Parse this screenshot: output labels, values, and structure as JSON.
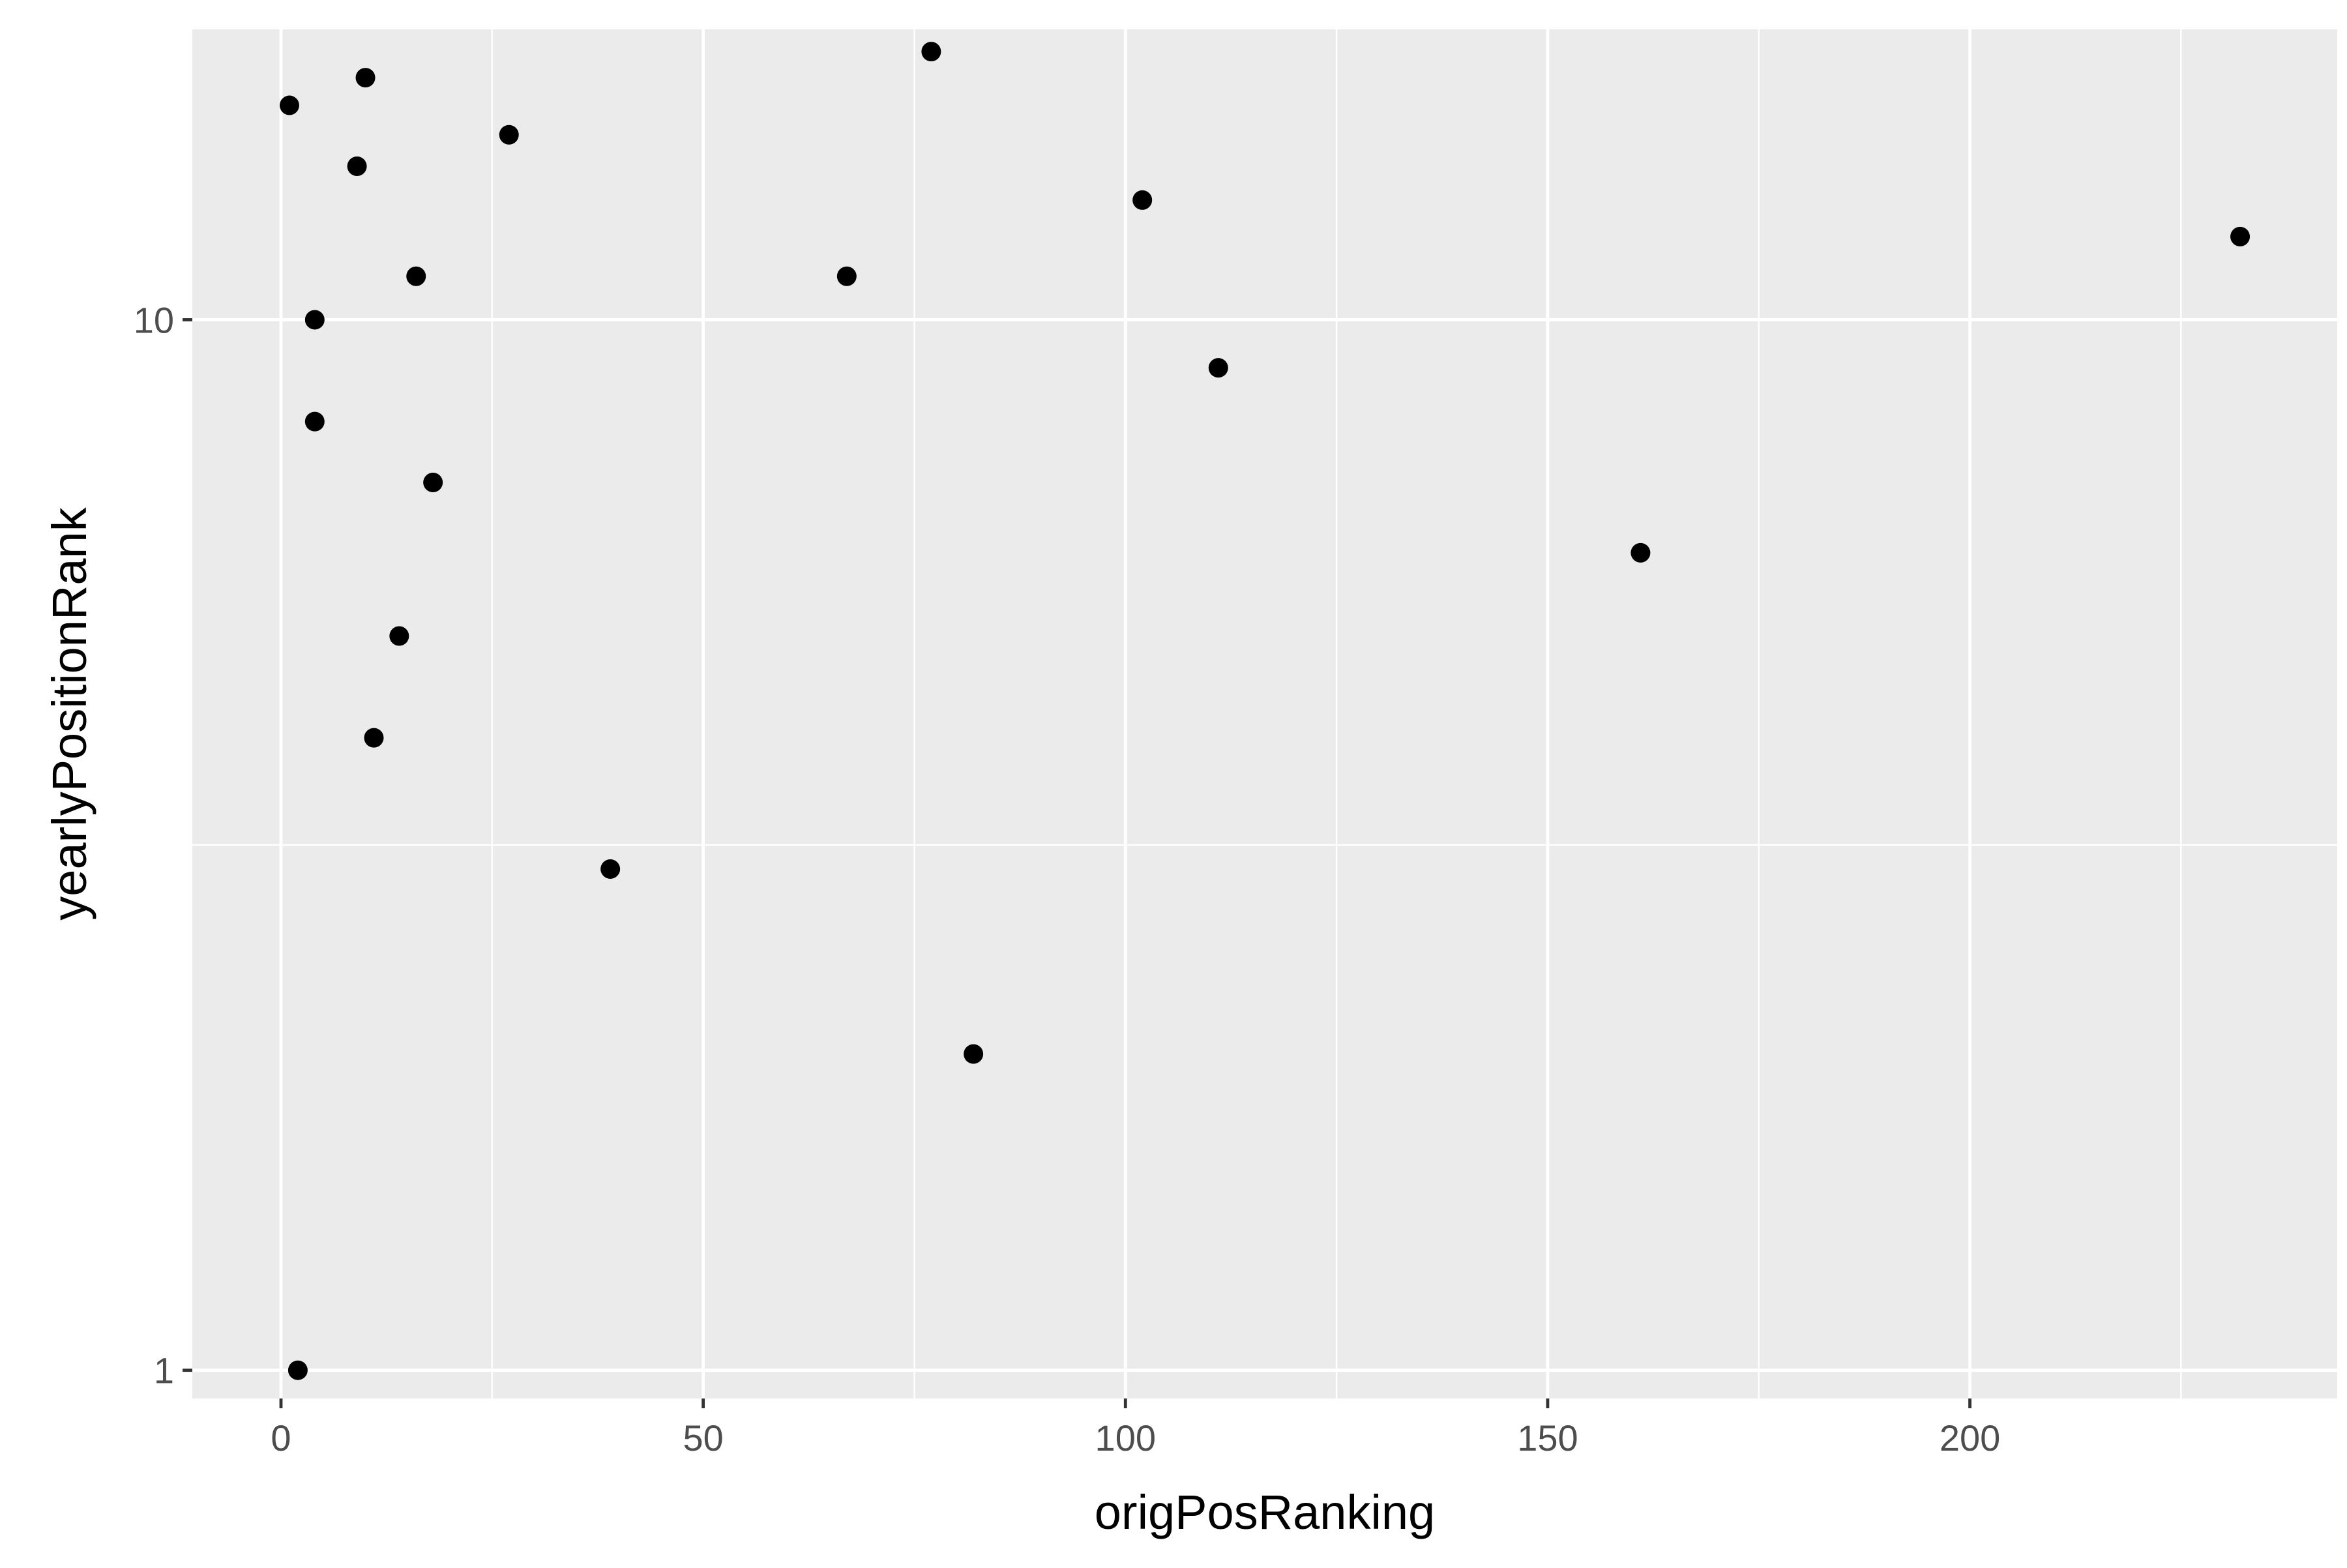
{
  "chart_data": {
    "type": "scatter",
    "title": "",
    "xlabel": "origPosRanking",
    "ylabel": "yearlyPositionRank",
    "x_scale": "linear",
    "y_scale": "log10",
    "xlim": [
      -10.5,
      243.5
    ],
    "ylim": [
      0.94,
      18.9
    ],
    "x_ticks": [
      0,
      50,
      100,
      150,
      200
    ],
    "x_tick_labels": [
      "0",
      "50",
      "100",
      "150",
      "200"
    ],
    "y_ticks": [
      1,
      10
    ],
    "y_tick_labels": [
      "1",
      "10"
    ],
    "grid": true,
    "legend": "none",
    "point_color": "#000000",
    "panel_background": "#ebebeb",
    "grid_color": "#ffffff",
    "points": [
      {
        "x": 1,
        "y": 16
      },
      {
        "x": 2,
        "y": 1
      },
      {
        "x": 4,
        "y": 10
      },
      {
        "x": 4,
        "y": 8
      },
      {
        "x": 9,
        "y": 14
      },
      {
        "x": 10,
        "y": 17
      },
      {
        "x": 11,
        "y": 4
      },
      {
        "x": 14,
        "y": 5
      },
      {
        "x": 16,
        "y": 11
      },
      {
        "x": 18,
        "y": 7
      },
      {
        "x": 27,
        "y": 15
      },
      {
        "x": 39,
        "y": 3
      },
      {
        "x": 67,
        "y": 11
      },
      {
        "x": 77,
        "y": 18
      },
      {
        "x": 82,
        "y": 2
      },
      {
        "x": 102,
        "y": 13
      },
      {
        "x": 111,
        "y": 9
      },
      {
        "x": 161,
        "y": 6
      },
      {
        "x": 232,
        "y": 12
      }
    ]
  }
}
